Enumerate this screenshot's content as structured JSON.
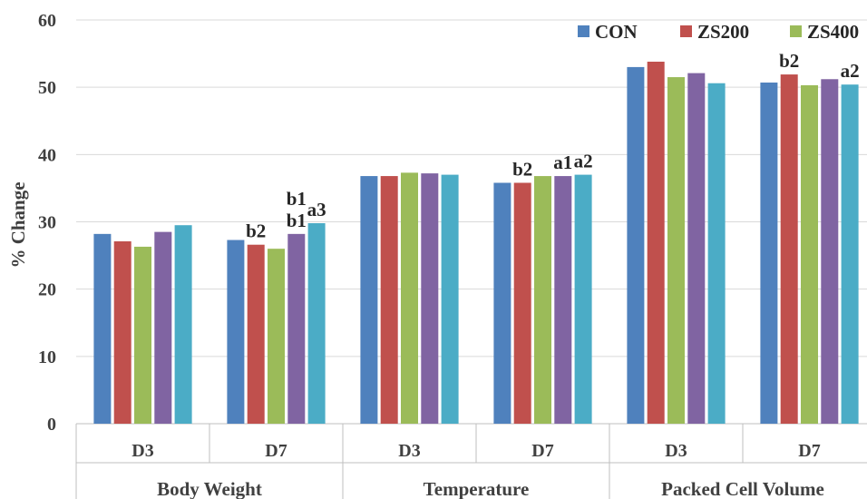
{
  "chart_data": {
    "type": "bar",
    "ylabel": "% Change",
    "ylim": [
      0,
      60
    ],
    "yticks": [
      0,
      10,
      20,
      30,
      40,
      50,
      60
    ],
    "grid": true,
    "legend_position": "top-right",
    "groups": [
      {
        "label": "Body Weight",
        "subcategories": [
          "D3",
          "D7"
        ]
      },
      {
        "label": "Temperature",
        "subcategories": [
          "D3",
          "D7"
        ]
      },
      {
        "label": "Packed Cell Volume",
        "subcategories": [
          "D3",
          "D7"
        ]
      }
    ],
    "series": [
      {
        "name": "CON",
        "color": "#4f81bd",
        "values": [
          28.2,
          27.3,
          36.8,
          35.8,
          53.0,
          50.7
        ]
      },
      {
        "name": "ZS200",
        "color": "#c0504d",
        "values": [
          27.1,
          26.6,
          36.8,
          35.8,
          53.8,
          51.9
        ]
      },
      {
        "name": "ZS400",
        "color": "#9bbb59",
        "values": [
          26.3,
          26.0,
          37.3,
          36.8,
          51.5,
          50.3
        ]
      },
      {
        "color": "#8064a2",
        "values": [
          28.5,
          28.2,
          37.2,
          36.8,
          52.1,
          51.2
        ]
      },
      {
        "color": "#4bacc6",
        "values": [
          29.5,
          29.8,
          37.0,
          37.0,
          50.6,
          50.4
        ]
      }
    ],
    "data_labels": [
      {
        "category_index": 1,
        "series_index": 1,
        "text": "b2"
      },
      {
        "category_index": 1,
        "series_index": 3,
        "text": "b1"
      },
      {
        "category_index": 1,
        "series_index": 4,
        "text": "a3"
      },
      {
        "category_index": 1,
        "series_index": 3,
        "text": "b1",
        "level": 2
      },
      {
        "category_index": 3,
        "series_index": 1,
        "text": "b2"
      },
      {
        "category_index": 3,
        "series_index": 3,
        "text": "a1"
      },
      {
        "category_index": 3,
        "series_index": 4,
        "text": "a2"
      },
      {
        "category_index": 5,
        "series_index": 1,
        "text": "b2"
      },
      {
        "category_index": 5,
        "series_index": 4,
        "text": "a2"
      }
    ]
  }
}
